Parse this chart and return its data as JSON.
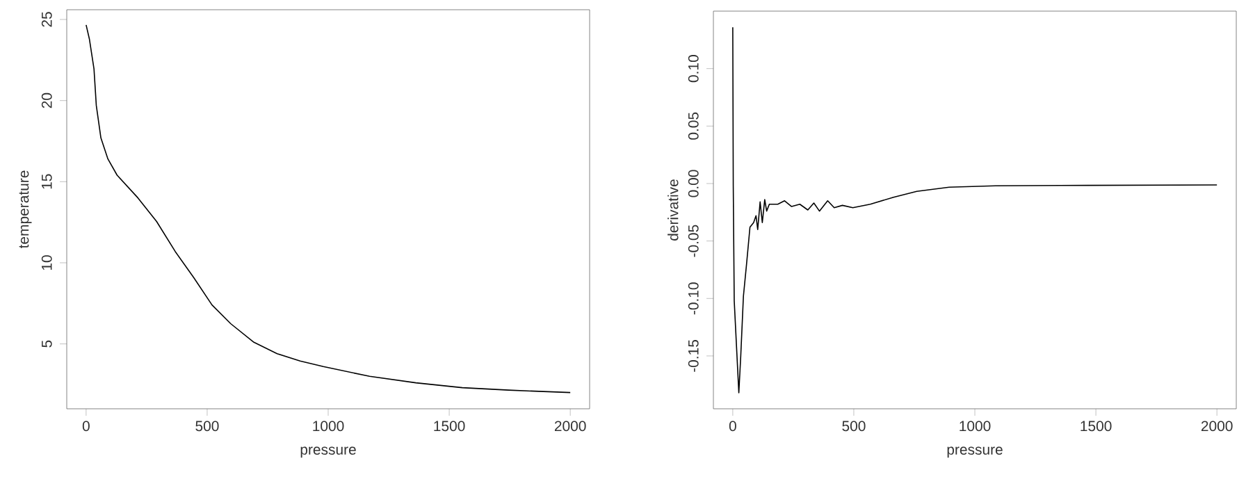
{
  "chart_data": [
    {
      "type": "line",
      "xlabel": "pressure",
      "ylabel": "temperature",
      "xlim": [
        -80,
        2080
      ],
      "ylim": [
        1.0,
        25.6
      ],
      "xticks": [
        0,
        500,
        1000,
        1500,
        2000
      ],
      "yticks": [
        5,
        10,
        15,
        20,
        25
      ],
      "x": [
        0,
        13.4,
        32.5,
        42,
        61,
        90,
        128,
        214,
        291,
        368,
        444,
        520,
        597,
        693,
        789,
        884,
        980,
        1171,
        1362,
        1554,
        1745,
        2000
      ],
      "series": [
        {
          "color": "#000000",
          "values": [
            24.66,
            23.8,
            21.95,
            19.7,
            17.7,
            16.4,
            15.4,
            14.0,
            12.55,
            10.7,
            9.1,
            7.4,
            6.25,
            5.1,
            4.4,
            3.95,
            3.6,
            3.0,
            2.6,
            2.3,
            2.15,
            2.0
          ]
        }
      ]
    },
    {
      "type": "line",
      "xlabel": "pressure",
      "ylabel": "derivative",
      "xlim": [
        -80,
        2080
      ],
      "ylim": [
        -0.196,
        0.15
      ],
      "xticks": [
        0,
        500,
        1000,
        1500,
        2000
      ],
      "yticks": [
        {
          "value": -0.15,
          "label": "-0.15"
        },
        {
          "value": -0.1,
          "label": "-0.10"
        },
        {
          "value": -0.05,
          "label": "-0.05"
        },
        {
          "value": 0,
          "label": "0.00"
        },
        {
          "value": 0.05,
          "label": "0.05"
        },
        {
          "value": 0.1,
          "label": "0.10"
        }
      ],
      "x": [
        0,
        2,
        6,
        25,
        33,
        44,
        57,
        71,
        86,
        96,
        103,
        113,
        122,
        132,
        140,
        151,
        186,
        214,
        243,
        277,
        310,
        335,
        358,
        392,
        419,
        453,
        496,
        568,
        664,
        760,
        894,
        1085,
        1467,
        2000
      ],
      "series": [
        {
          "color": "#000000",
          "values": [
            0.136,
            -0.002,
            -0.102,
            -0.182,
            -0.15,
            -0.098,
            -0.07,
            -0.038,
            -0.034,
            -0.028,
            -0.04,
            -0.016,
            -0.034,
            -0.014,
            -0.024,
            -0.018,
            -0.018,
            -0.015,
            -0.02,
            -0.018,
            -0.023,
            -0.017,
            -0.024,
            -0.015,
            -0.021,
            -0.019,
            -0.021,
            -0.018,
            -0.012,
            -0.0068,
            -0.0032,
            -0.002,
            -0.0016,
            -0.0012
          ]
        }
      ]
    }
  ]
}
